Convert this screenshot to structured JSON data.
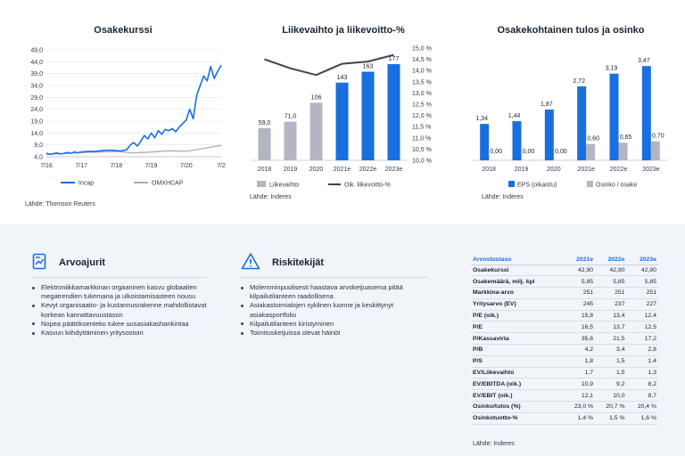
{
  "charts": {
    "share_price": {
      "title": "Osakekurssi",
      "source": "Lähde: Thomson Reuters"
    },
    "revenue": {
      "title": "Liikevaihto ja liikevoitto-%",
      "source": "Lähde: Inderes"
    },
    "eps": {
      "title": "Osakekohtainen tulos ja osinko",
      "source": "Lähde: Inderes"
    }
  },
  "chart_data": [
    {
      "type": "line",
      "title": "Osakekurssi",
      "x_ticks": [
        "7/16",
        "7/17",
        "7/18",
        "7/19",
        "7/20",
        "7/2"
      ],
      "y_ticks": [
        "4,0",
        "9,0",
        "14,0",
        "19,0",
        "24,0",
        "29,0",
        "34,0",
        "39,0",
        "44,0",
        "49,0"
      ],
      "ylim": [
        4,
        49
      ],
      "grid": true,
      "legend_position": "bottom",
      "series": [
        {
          "name": "Incap",
          "color": "#1a6fe0",
          "t": [
            0,
            0.1,
            0.2,
            0.3,
            0.4,
            0.5,
            0.6,
            0.7,
            0.8,
            0.9,
            1.0,
            1.2,
            1.4,
            1.6,
            1.8,
            2.0,
            2.1,
            2.2,
            2.3,
            2.4,
            2.5,
            2.6,
            2.7,
            2.8,
            2.9,
            3.0,
            3.1,
            3.2,
            3.3,
            3.4,
            3.5,
            3.6,
            3.7,
            3.8,
            3.9,
            4.0,
            4.1,
            4.2,
            4.3,
            4.4,
            4.5,
            4.6,
            4.7,
            4.8,
            4.9,
            5.0
          ],
          "values": [
            5.5,
            5.0,
            5.3,
            5.6,
            5.2,
            5.4,
            5.8,
            5.5,
            6.0,
            5.7,
            6.0,
            6.3,
            6.2,
            6.6,
            6.8,
            6.6,
            6.4,
            6.6,
            7.0,
            9.0,
            10.0,
            8.5,
            10.5,
            13.0,
            11.5,
            14.0,
            12.0,
            15.0,
            13.5,
            15.5,
            15.0,
            15.8,
            14.5,
            16.5,
            18.0,
            19.5,
            24.0,
            20.0,
            30.0,
            34.0,
            38.0,
            36.0,
            42.0,
            37.0,
            40.0,
            42.5
          ]
        },
        {
          "name": "OMXHCAP",
          "color": "#a9adb8",
          "t": [
            0,
            0.5,
            1.0,
            1.5,
            2.0,
            2.5,
            3.0,
            3.5,
            4.0,
            4.3,
            4.6,
            5.0
          ],
          "values": [
            5.0,
            5.3,
            5.8,
            6.0,
            6.2,
            5.6,
            6.0,
            6.5,
            6.3,
            7.0,
            7.8,
            8.8
          ]
        }
      ]
    },
    {
      "type": "bar",
      "title": "Liikevaihto ja liikevoitto-%",
      "categories": [
        "2018",
        "2019",
        "2020",
        "2021e",
        "2022e",
        "2023e"
      ],
      "grid": false,
      "legend_position": "bottom",
      "series": [
        {
          "name": "Liikevaihto",
          "values": [
            59.0,
            71.0,
            106,
            143,
            163,
            177
          ],
          "labels": [
            "59,0",
            "71,0",
            "106",
            "143",
            "163",
            "177"
          ],
          "colors": [
            "#b3b6c2",
            "#b3b6c2",
            "#b3b6c2",
            "#1a6fe0",
            "#1a6fe0",
            "#1a6fe0"
          ]
        },
        {
          "name": "Oik. liikevoitto-%",
          "type": "line",
          "axis": "right",
          "color": "#3b4356",
          "values": [
            14.5,
            14.1,
            13.8,
            14.3,
            14.4,
            14.7
          ]
        }
      ],
      "ylim_right": [
        10.0,
        15.0
      ],
      "right_ticks": [
        "10,0 %",
        "10,5 %",
        "11,0 %",
        "11,5 %",
        "12,0 %",
        "12,5 %",
        "13,0 %",
        "13,5 %",
        "14,0 %",
        "14,5 %",
        "15,0 %"
      ]
    },
    {
      "type": "bar",
      "title": "Osakekohtainen tulos ja osinko",
      "categories": [
        "2018",
        "2019",
        "2020",
        "2021e",
        "2022e",
        "2023e"
      ],
      "grid": false,
      "legend_position": "bottom",
      "series": [
        {
          "name": "EPS (oikaistu)",
          "color": "#1a6fe0",
          "values": [
            1.34,
            1.44,
            1.87,
            2.72,
            3.19,
            3.47
          ],
          "labels": [
            "1,34",
            "1,44",
            "1,87",
            "2,72",
            "3,19",
            "3,47"
          ]
        },
        {
          "name": "Osinko / osake",
          "color": "#b3b6c2",
          "values": [
            0.0,
            0.0,
            0.0,
            0.6,
            0.65,
            0.7
          ],
          "labels": [
            "0,00",
            "0,00",
            "0,00",
            "0,60",
            "0,65",
            "0,70"
          ]
        }
      ]
    }
  ],
  "drivers": {
    "title": "Arvoajurit",
    "items": [
      "Elektroniikkamarkkinan orgaaninen kasvu globaalien megatrendien tukemana ja ulkoistamisasteen nousu",
      "Kevyt organisaatio- ja kustannusrakenne mahdollistavat korkean kannattavuustason",
      "Nopea päätöksenteko tukee uusasiakashankintaa",
      "Kasvun kiihdyttäminen yritysostoin"
    ]
  },
  "risks": {
    "title": "Riskitekijät",
    "items": [
      "Molemminpuolisesti haastava arvoketjuasema pitää kilpailutilanteen raadollisena",
      "Asiakastoimialojen syklinen luonne ja keskittynyt asiakasportfolio",
      "Kilpailutilanteen kiristyminen",
      "Toimitusketjuissa olevat häiriöt"
    ]
  },
  "valuation": {
    "header": [
      "Arvostustaso",
      "2021e",
      "2022e",
      "2023e"
    ],
    "rows": [
      [
        "Osakekurssi",
        "42,90",
        "42,90",
        "42,90"
      ],
      [
        "Osakemäärä, milj. kpl",
        "5,85",
        "5,85",
        "5,85"
      ],
      [
        "Markkina-arvo",
        "251",
        "251",
        "251"
      ],
      [
        "Yritysarvo (EV)",
        "245",
        "237",
        "227"
      ],
      [
        "P/E (oik.)",
        "15,8",
        "13,4",
        "12,4"
      ],
      [
        "P/E",
        "16,5",
        "13,7",
        "12,5"
      ],
      [
        "P/Kassavirta",
        "35,6",
        "21,5",
        "17,2"
      ],
      [
        "P/B",
        "4,2",
        "3,4",
        "2,8"
      ],
      [
        "P/S",
        "1,8",
        "1,5",
        "1,4"
      ],
      [
        "EV/Liikevaihto",
        "1,7",
        "1,5",
        "1,3"
      ],
      [
        "EV/EBITDA (oik.)",
        "10,9",
        "9,2",
        "8,2"
      ],
      [
        "EV/EBIT (oik.)",
        "12,1",
        "10,0",
        "8,7"
      ],
      [
        "Osinko/tulos (%)",
        "23,0 %",
        "20,7 %",
        "20,4 %"
      ],
      [
        "Osinkotuotto-%",
        "1,4 %",
        "1,5 %",
        "1,6 %"
      ]
    ],
    "source": "Lähde: Inderes"
  }
}
